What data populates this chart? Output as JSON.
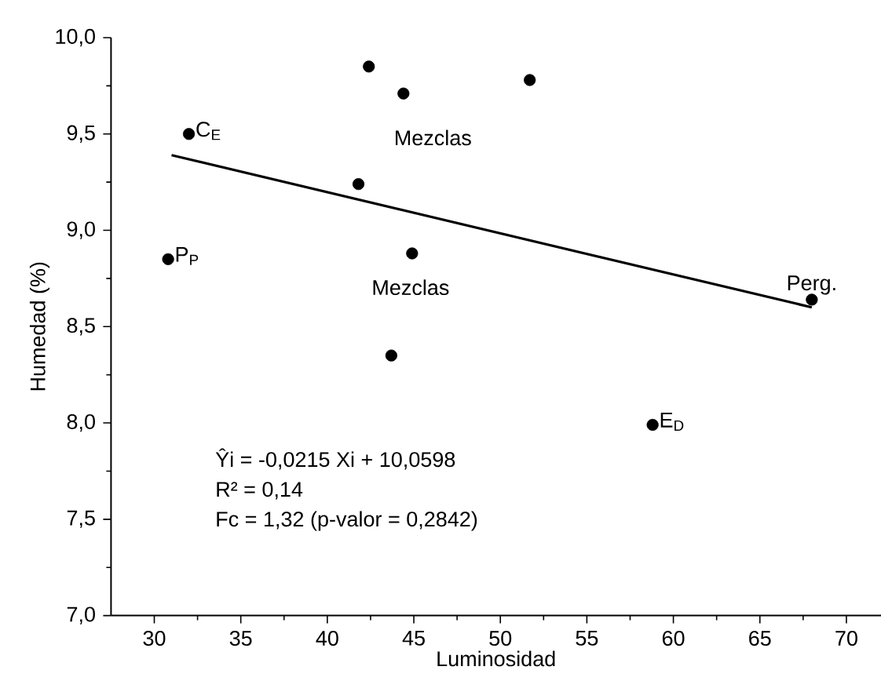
{
  "chart_data": {
    "type": "scatter",
    "xlabel": "Luminosidad",
    "ylabel": "Humedad (%)",
    "xlim": [
      27.5,
      72
    ],
    "ylim": [
      7,
      10
    ],
    "xticks": [
      30,
      35,
      40,
      45,
      50,
      55,
      60,
      65,
      70
    ],
    "yticks": [
      {
        "value": 7,
        "label": "7,0"
      },
      {
        "value": 7.5,
        "label": "7,5"
      },
      {
        "value": 8,
        "label": "8,0"
      },
      {
        "value": 8.5,
        "label": "8,5"
      },
      {
        "value": 9,
        "label": "9,0"
      },
      {
        "value": 9.5,
        "label": "9,5"
      },
      {
        "value": 10,
        "label": "10,0"
      }
    ],
    "grid": false,
    "series": [
      {
        "marker": "circle",
        "color": "#000000",
        "x": [
          32.0,
          30.8,
          42.4,
          44.4,
          41.8,
          44.9,
          43.7,
          51.7,
          68.0,
          58.8
        ],
        "values": [
          9.5,
          8.85,
          9.85,
          9.71,
          9.24,
          8.88,
          8.35,
          9.78,
          8.64,
          7.99
        ]
      },
      {
        "type": "line",
        "marker": "none",
        "color": "#000000",
        "x": [
          31.0,
          68.0
        ],
        "values": [
          9.39,
          8.6
        ]
      }
    ],
    "annotations": [
      {
        "text": "C$_{E}$",
        "x": 32.0,
        "y": 9.5
      },
      {
        "text": "P$_{P}$",
        "x": 30.8,
        "y": 8.85
      },
      {
        "text": "E$_{D}$",
        "x": 58.8,
        "y": 7.99
      },
      {
        "text": "Perg.",
        "x": 68.0,
        "y": 8.64
      },
      "Mezclas",
      "Mezclas",
      "Ŷi = -0,0215 Xi + 10,0598",
      "R² = 0,14",
      "Fc = 1,32 (p-valor = 0,2842)"
    ]
  }
}
